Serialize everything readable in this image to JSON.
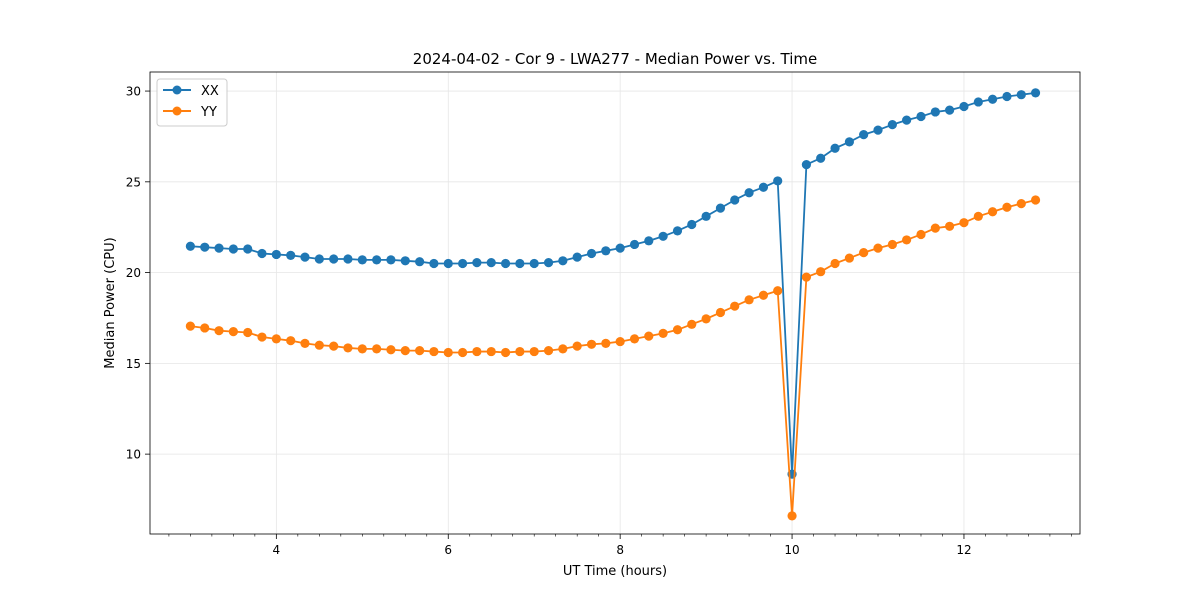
{
  "chart_data": {
    "type": "line",
    "title": "2024-04-02 - Cor 9 - LWA277 - Median Power vs. Time",
    "xlabel": "UT Time (hours)",
    "ylabel": "Median Power (CPU)",
    "xlim": [
      2.53,
      13.35
    ],
    "ylim": [
      5.6,
      31.05
    ],
    "x_ticks": [
      4,
      6,
      8,
      10,
      12
    ],
    "y_ticks": [
      10,
      15,
      20,
      25,
      30
    ],
    "x_minor_step": 0.25,
    "grid": true,
    "legend_position": "top-left",
    "x": [
      3.0,
      3.167,
      3.333,
      3.5,
      3.667,
      3.833,
      4.0,
      4.167,
      4.333,
      4.5,
      4.667,
      4.833,
      5.0,
      5.167,
      5.333,
      5.5,
      5.667,
      5.833,
      6.0,
      6.167,
      6.333,
      6.5,
      6.667,
      6.833,
      7.0,
      7.167,
      7.333,
      7.5,
      7.667,
      7.833,
      8.0,
      8.167,
      8.333,
      8.5,
      8.667,
      8.833,
      9.0,
      9.167,
      9.333,
      9.5,
      9.667,
      9.833,
      10.0,
      10.167,
      10.333,
      10.5,
      10.667,
      10.833,
      11.0,
      11.167,
      11.333,
      11.5,
      11.667,
      11.833,
      12.0,
      12.167,
      12.333,
      12.5,
      12.667,
      12.833
    ],
    "series": [
      {
        "name": "XX",
        "color": "#1f77b4",
        "values": [
          21.45,
          21.4,
          21.35,
          21.3,
          21.3,
          21.05,
          21.0,
          20.95,
          20.85,
          20.75,
          20.75,
          20.75,
          20.7,
          20.7,
          20.7,
          20.65,
          20.6,
          20.5,
          20.5,
          20.5,
          20.55,
          20.55,
          20.5,
          20.5,
          20.5,
          20.55,
          20.65,
          20.85,
          21.05,
          21.2,
          21.35,
          21.55,
          21.75,
          22.0,
          22.3,
          22.65,
          23.1,
          23.55,
          24.0,
          24.4,
          24.7,
          25.05,
          8.9,
          25.95,
          26.3,
          26.85,
          27.2,
          27.6,
          27.85,
          28.15,
          28.4,
          28.6,
          28.85,
          28.95,
          29.15,
          29.4,
          29.55,
          29.7,
          29.8,
          29.9
        ]
      },
      {
        "name": "YY",
        "color": "#ff7f0e",
        "values": [
          17.05,
          16.95,
          16.8,
          16.75,
          16.7,
          16.45,
          16.35,
          16.25,
          16.1,
          16.0,
          15.95,
          15.85,
          15.8,
          15.8,
          15.75,
          15.7,
          15.7,
          15.65,
          15.6,
          15.6,
          15.65,
          15.65,
          15.6,
          15.65,
          15.65,
          15.7,
          15.8,
          15.95,
          16.05,
          16.1,
          16.2,
          16.35,
          16.5,
          16.65,
          16.85,
          17.15,
          17.45,
          17.8,
          18.15,
          18.5,
          18.75,
          19.0,
          6.6,
          19.75,
          20.05,
          20.5,
          20.8,
          21.1,
          21.35,
          21.55,
          21.8,
          22.1,
          22.45,
          22.55,
          22.75,
          23.1,
          23.35,
          23.6,
          23.8,
          24.0
        ]
      }
    ]
  }
}
